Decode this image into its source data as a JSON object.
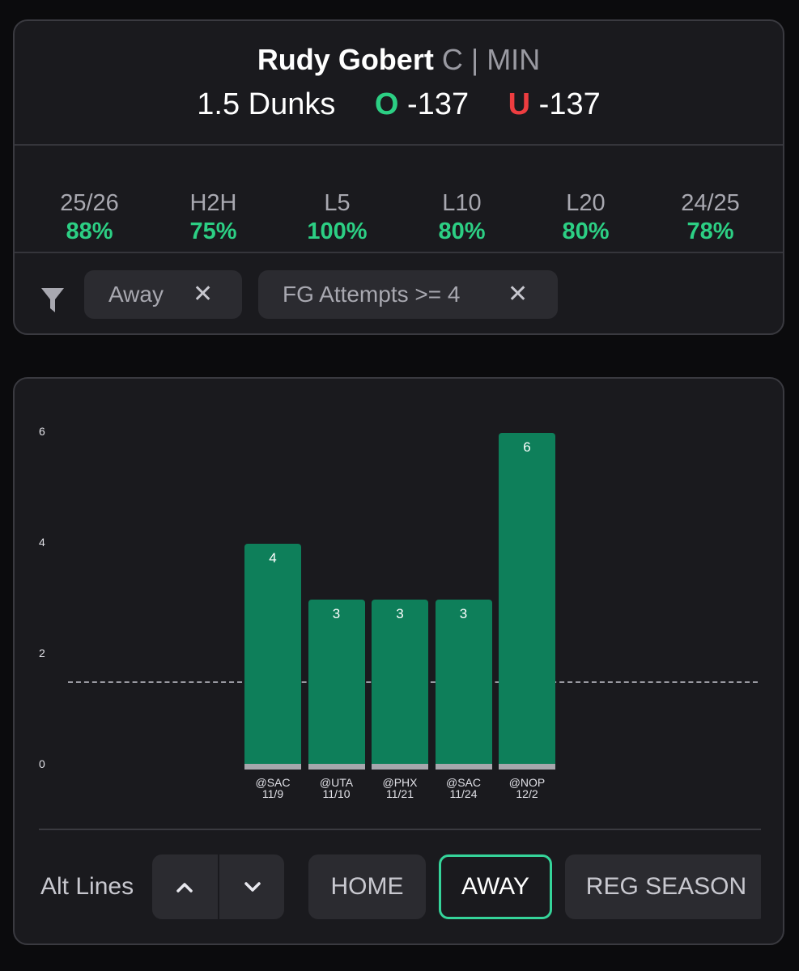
{
  "header": {
    "player_name": "Rudy Gobert",
    "player_meta": "C | MIN",
    "line": "1.5 Dunks",
    "over_letter": "O",
    "over_odds": "-137",
    "under_letter": "U",
    "under_odds": "-137"
  },
  "stats": [
    {
      "label": "25/26",
      "value": "88%"
    },
    {
      "label": "H2H",
      "value": "75%"
    },
    {
      "label": "L5",
      "value": "100%"
    },
    {
      "label": "L10",
      "value": "80%"
    },
    {
      "label": "L20",
      "value": "80%"
    },
    {
      "label": "24/25",
      "value": "78%"
    }
  ],
  "filters": [
    {
      "label": "Away",
      "remove": "✕"
    },
    {
      "label": "FG Attempts >= 4",
      "remove": "✕"
    }
  ],
  "chart_data": {
    "type": "bar",
    "categories": [
      "@SAC 11/9",
      "@UTA 11/10",
      "@PHX 11/21",
      "@SAC 11/24",
      "@NOP 12/2"
    ],
    "opponents": [
      "@SAC",
      "@UTA",
      "@PHX",
      "@SAC",
      "@NOP"
    ],
    "dates": [
      "11/9",
      "11/10",
      "11/21",
      "11/24",
      "12/2"
    ],
    "values": [
      4,
      3,
      3,
      3,
      6
    ],
    "y_ticks": [
      "0",
      "2",
      "4",
      "6"
    ],
    "ylim": [
      0,
      6
    ],
    "threshold": 1.5,
    "bar_color": "#0e7f5a",
    "grid": false
  },
  "bottom": {
    "alt_lines_label": "Alt Lines",
    "up_icon": "chevron-up-icon",
    "down_icon": "chevron-down-icon",
    "pills": [
      {
        "label": "HOME",
        "active": false
      },
      {
        "label": "AWAY",
        "active": true
      },
      {
        "label": "REG SEASON",
        "active": false
      }
    ]
  },
  "colors": {
    "accent_green": "#2ccf84",
    "under_red": "#ee3d40",
    "card_bg": "#1a1a1e"
  }
}
